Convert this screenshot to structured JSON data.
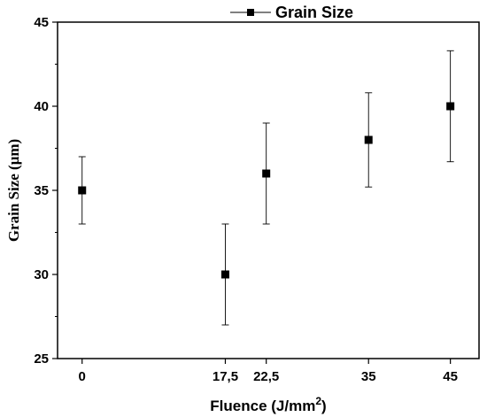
{
  "chart_data": {
    "type": "scatter",
    "xlabel_main": "Fluence (J/mm",
    "xlabel_sup": "2",
    "xlabel_end": ")",
    "ylabel": "Grain Size (μm)",
    "xlim": [
      -3,
      48.5
    ],
    "ylim": [
      25,
      45
    ],
    "x_ticks": [
      0,
      17.5,
      22.5,
      35,
      45
    ],
    "x_tick_labels": [
      "0",
      "17,5",
      "22,5",
      "35",
      "45"
    ],
    "y_ticks": [
      25,
      30,
      35,
      40,
      45
    ],
    "y_tick_labels": [
      "25",
      "30",
      "35",
      "40",
      "45"
    ],
    "grid": false,
    "legend_position": "top-center",
    "series": [
      {
        "name": "Grain Size",
        "marker": "square",
        "color": "#000000",
        "points": [
          {
            "x": 0,
            "y": 35,
            "err_low": 33,
            "err_high": 37
          },
          {
            "x": 17.5,
            "y": 30,
            "err_low": 27,
            "err_high": 33
          },
          {
            "x": 22.5,
            "y": 36,
            "err_low": 33,
            "err_high": 39
          },
          {
            "x": 35,
            "y": 38,
            "err_low": 35.2,
            "err_high": 40.8
          },
          {
            "x": 45,
            "y": 40,
            "err_low": 36.7,
            "err_high": 43.3
          }
        ]
      }
    ]
  }
}
